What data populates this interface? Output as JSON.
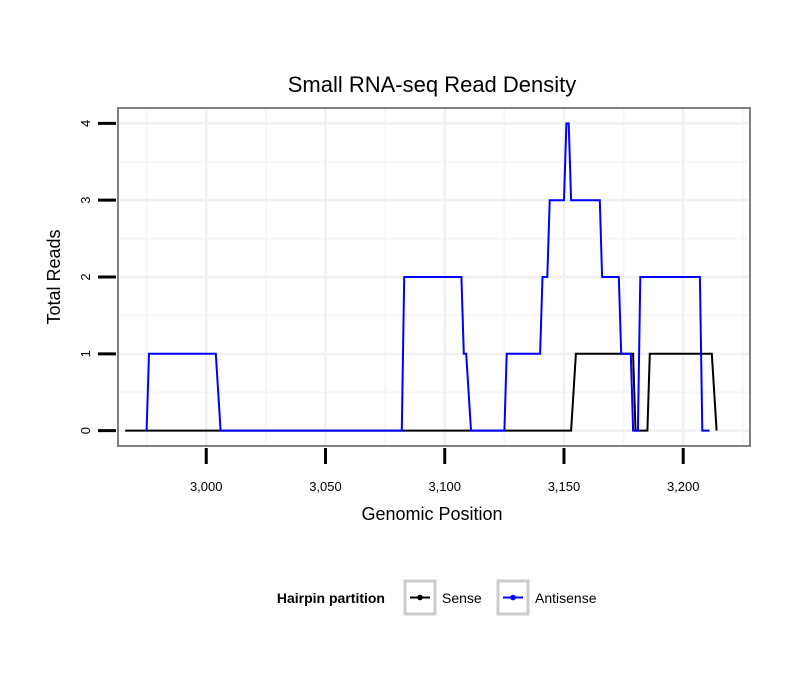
{
  "chart_data": {
    "type": "line",
    "title": "Small RNA-seq Read Density",
    "xlabel": "Genomic Position",
    "ylabel": "Total Reads",
    "xlim": [
      2963,
      3228
    ],
    "ylim": [
      -0.2,
      4.2
    ],
    "x_ticks": [
      3000,
      3050,
      3100,
      3150,
      3200
    ],
    "x_tick_labels": [
      "3,000",
      "3,050",
      "3,100",
      "3,150",
      "3,200"
    ],
    "y_ticks": [
      0,
      1,
      2,
      3,
      4
    ],
    "y_tick_labels": [
      "0",
      "1",
      "2",
      "3",
      "4"
    ],
    "grid": true,
    "legend": {
      "title": "Hairpin partition",
      "placement": "bottom",
      "entries": [
        "Sense",
        "Antisense"
      ]
    },
    "series": [
      {
        "name": "Antisense",
        "color": "#0000ff",
        "x": [
          2975,
          2976,
          3004,
          3006,
          3082,
          3083,
          3107,
          3108,
          3109,
          3111,
          3125,
          3126,
          3140,
          3141,
          3143,
          3144,
          3146,
          3150,
          3151,
          3152,
          3153,
          3165,
          3166,
          3173,
          3174,
          3178,
          3179,
          3181,
          3182,
          3207,
          3208,
          3211
        ],
        "values": [
          0,
          1,
          1,
          0,
          0,
          2,
          2,
          1,
          1,
          0,
          0,
          1,
          1,
          2,
          2,
          3,
          3,
          3,
          4,
          4,
          3,
          3,
          2,
          2,
          1,
          1,
          0,
          0,
          2,
          2,
          0,
          0
        ]
      },
      {
        "name": "Sense",
        "color": "#000000",
        "x": [
          2966,
          3153,
          3155,
          3179,
          3180,
          3185,
          3186,
          3212,
          3214
        ],
        "values": [
          0,
          0,
          1,
          1,
          0,
          0,
          1,
          1,
          0
        ]
      }
    ]
  }
}
